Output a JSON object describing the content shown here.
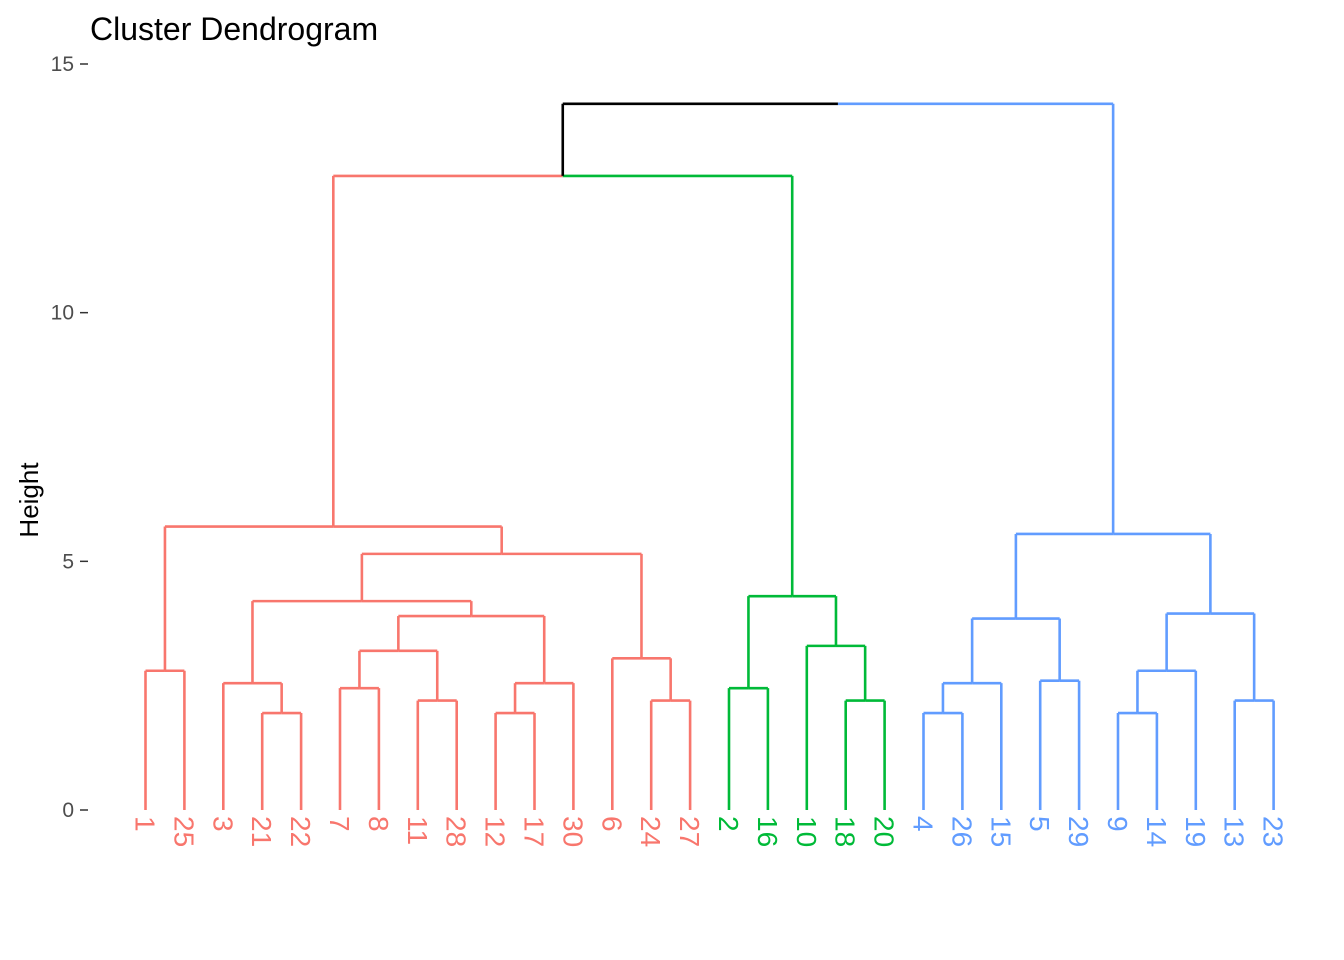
{
  "chart_data": {
    "type": "dendrogram",
    "title": "Cluster Dendrogram",
    "xlabel": "",
    "ylabel": "Height",
    "ylim": [
      0,
      15
    ],
    "yticks": [
      0,
      5,
      10,
      15
    ],
    "grid": false,
    "leaf_order": [
      "1",
      "25",
      "3",
      "21",
      "22",
      "7",
      "8",
      "11",
      "28",
      "12",
      "17",
      "30",
      "6",
      "24",
      "27",
      "2",
      "16",
      "10",
      "18",
      "20",
      "4",
      "26",
      "15",
      "5",
      "29",
      "9",
      "14",
      "19",
      "13",
      "23"
    ],
    "cluster_colors": [
      "#F8766D",
      "#00BA38",
      "#619CFF"
    ],
    "root_color": "#000000",
    "tree": {
      "h": 14.2,
      "c": "root",
      "ch": [
        {
          "h": 12.75,
          "c": "root",
          "ch": [
            {
              "h": 5.7,
              "c": 0,
              "ch": [
                {
                  "h": 2.8,
                  "c": 0,
                  "ch": [
                    "1",
                    "25"
                  ]
                },
                {
                  "h": 5.15,
                  "c": 0,
                  "ch": [
                    {
                      "h": 4.2,
                      "c": 0,
                      "ch": [
                        {
                          "h": 2.55,
                          "c": 0,
                          "ch": [
                            "3",
                            {
                              "h": 1.95,
                              "c": 0,
                              "ch": [
                                "21",
                                "22"
                              ]
                            }
                          ]
                        },
                        {
                          "h": 3.9,
                          "c": 0,
                          "ch": [
                            {
                              "h": 3.2,
                              "c": 0,
                              "ch": [
                                {
                                  "h": 2.45,
                                  "c": 0,
                                  "ch": [
                                    "7",
                                    "8"
                                  ]
                                },
                                {
                                  "h": 2.2,
                                  "c": 0,
                                  "ch": [
                                    "11",
                                    "28"
                                  ]
                                }
                              ]
                            },
                            {
                              "h": 2.55,
                              "c": 0,
                              "ch": [
                                {
                                  "h": 1.95,
                                  "c": 0,
                                  "ch": [
                                    "12",
                                    "17"
                                  ]
                                },
                                "30"
                              ]
                            }
                          ]
                        }
                      ]
                    },
                    {
                      "h": 3.05,
                      "c": 0,
                      "ch": [
                        "6",
                        {
                          "h": 2.2,
                          "c": 0,
                          "ch": [
                            "24",
                            "27"
                          ]
                        }
                      ]
                    }
                  ]
                }
              ]
            },
            {
              "h": 4.3,
              "c": 1,
              "ch": [
                {
                  "h": 2.45,
                  "c": 1,
                  "ch": [
                    "2",
                    "16"
                  ]
                },
                {
                  "h": 3.3,
                  "c": 1,
                  "ch": [
                    "10",
                    {
                      "h": 2.2,
                      "c": 1,
                      "ch": [
                        "18",
                        "20"
                      ]
                    }
                  ]
                }
              ]
            }
          ]
        },
        {
          "h": 5.55,
          "c": 2,
          "ch": [
            {
              "h": 3.85,
              "c": 2,
              "ch": [
                {
                  "h": 2.55,
                  "c": 2,
                  "ch": [
                    {
                      "h": 1.95,
                      "c": 2,
                      "ch": [
                        "4",
                        "26"
                      ]
                    },
                    "15"
                  ]
                },
                {
                  "h": 2.6,
                  "c": 2,
                  "ch": [
                    "5",
                    "29"
                  ]
                }
              ]
            },
            {
              "h": 3.95,
              "c": 2,
              "ch": [
                {
                  "h": 2.8,
                  "c": 2,
                  "ch": [
                    {
                      "h": 1.95,
                      "c": 2,
                      "ch": [
                        "9",
                        "14"
                      ]
                    },
                    "19"
                  ]
                },
                {
                  "h": 2.2,
                  "c": 2,
                  "ch": [
                    "13",
                    "23"
                  ]
                }
              ]
            }
          ]
        }
      ]
    }
  }
}
